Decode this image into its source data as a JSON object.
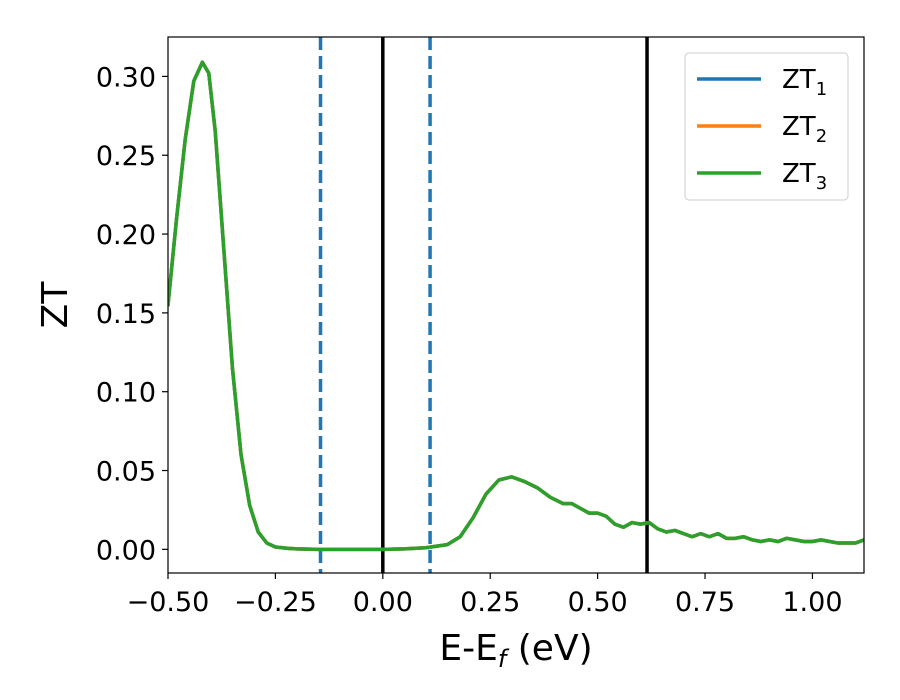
{
  "chart_data": {
    "type": "line",
    "xlabel": {
      "main": "E-E",
      "sub": "f",
      "unit": " (eV)"
    },
    "ylabel": "ZT",
    "xlim": [
      -0.5,
      1.12
    ],
    "ylim": [
      -0.015,
      0.325
    ],
    "xticks": [
      -0.5,
      -0.25,
      0.0,
      0.25,
      0.5,
      0.75,
      1.0
    ],
    "xtick_labels": [
      "−0.50",
      "−0.25",
      "0.00",
      "0.25",
      "0.50",
      "0.75",
      "1.00"
    ],
    "yticks": [
      0.0,
      0.05,
      0.1,
      0.15,
      0.2,
      0.25,
      0.3
    ],
    "ytick_labels": [
      "0.00",
      "0.05",
      "0.10",
      "0.15",
      "0.20",
      "0.25",
      "0.30"
    ],
    "grid": false,
    "legend_position": "top-right",
    "vlines": [
      {
        "x": -0.145,
        "style": "dashed",
        "color": "#1f77b4"
      },
      {
        "x": 0.11,
        "style": "dashed",
        "color": "#1f77b4"
      },
      {
        "x": 0.0,
        "style": "solid",
        "color": "#000000"
      },
      {
        "x": 0.615,
        "style": "solid",
        "color": "#000000"
      }
    ],
    "x": [
      -0.5,
      -0.48,
      -0.46,
      -0.44,
      -0.42,
      -0.405,
      -0.39,
      -0.37,
      -0.35,
      -0.33,
      -0.31,
      -0.29,
      -0.27,
      -0.25,
      -0.22,
      -0.2,
      -0.15,
      -0.1,
      -0.05,
      0.0,
      0.05,
      0.1,
      0.15,
      0.18,
      0.21,
      0.24,
      0.27,
      0.3,
      0.33,
      0.36,
      0.39,
      0.42,
      0.44,
      0.46,
      0.48,
      0.5,
      0.52,
      0.54,
      0.56,
      0.58,
      0.6,
      0.62,
      0.64,
      0.66,
      0.68,
      0.7,
      0.72,
      0.74,
      0.76,
      0.78,
      0.8,
      0.82,
      0.84,
      0.86,
      0.88,
      0.9,
      0.92,
      0.94,
      0.96,
      0.98,
      1.0,
      1.02,
      1.04,
      1.06,
      1.08,
      1.1,
      1.12
    ],
    "series": [
      {
        "name": "ZT_1",
        "label_main": "ZT",
        "label_sub": "1",
        "color": "#1f77b4",
        "values": [
          0.155,
          0.21,
          0.26,
          0.297,
          0.309,
          0.302,
          0.265,
          0.19,
          0.115,
          0.06,
          0.028,
          0.011,
          0.004,
          0.0015,
          0.0006,
          0.0003,
          0.0,
          0.0,
          0.0,
          0.0,
          0.0003,
          0.001,
          0.003,
          0.008,
          0.02,
          0.035,
          0.044,
          0.046,
          0.043,
          0.039,
          0.033,
          0.029,
          0.029,
          0.026,
          0.023,
          0.023,
          0.021,
          0.016,
          0.014,
          0.017,
          0.016,
          0.017,
          0.013,
          0.011,
          0.012,
          0.01,
          0.008,
          0.01,
          0.008,
          0.01,
          0.007,
          0.007,
          0.008,
          0.006,
          0.005,
          0.006,
          0.005,
          0.007,
          0.006,
          0.005,
          0.005,
          0.006,
          0.005,
          0.004,
          0.004,
          0.004,
          0.006
        ]
      },
      {
        "name": "ZT_2",
        "label_main": "ZT",
        "label_sub": "2",
        "color": "#ff7f0e",
        "values": [
          0.155,
          0.21,
          0.26,
          0.297,
          0.309,
          0.302,
          0.265,
          0.19,
          0.115,
          0.06,
          0.028,
          0.011,
          0.004,
          0.0015,
          0.0006,
          0.0003,
          0.0,
          0.0,
          0.0,
          0.0,
          0.0003,
          0.001,
          0.003,
          0.008,
          0.02,
          0.035,
          0.044,
          0.046,
          0.043,
          0.039,
          0.033,
          0.029,
          0.029,
          0.026,
          0.023,
          0.023,
          0.021,
          0.016,
          0.014,
          0.017,
          0.016,
          0.017,
          0.013,
          0.011,
          0.012,
          0.01,
          0.008,
          0.01,
          0.008,
          0.01,
          0.007,
          0.007,
          0.008,
          0.006,
          0.005,
          0.006,
          0.005,
          0.007,
          0.006,
          0.005,
          0.005,
          0.006,
          0.005,
          0.004,
          0.004,
          0.004,
          0.006
        ]
      },
      {
        "name": "ZT_3",
        "label_main": "ZT",
        "label_sub": "3",
        "color": "#2ca02c",
        "values": [
          0.155,
          0.21,
          0.26,
          0.297,
          0.309,
          0.302,
          0.265,
          0.19,
          0.115,
          0.06,
          0.028,
          0.011,
          0.004,
          0.0015,
          0.0006,
          0.0003,
          0.0,
          0.0,
          0.0,
          0.0,
          0.0003,
          0.001,
          0.003,
          0.008,
          0.02,
          0.035,
          0.044,
          0.046,
          0.043,
          0.039,
          0.033,
          0.029,
          0.029,
          0.026,
          0.023,
          0.023,
          0.021,
          0.016,
          0.014,
          0.017,
          0.016,
          0.017,
          0.013,
          0.011,
          0.012,
          0.01,
          0.008,
          0.01,
          0.008,
          0.01,
          0.007,
          0.007,
          0.008,
          0.006,
          0.005,
          0.006,
          0.005,
          0.007,
          0.006,
          0.005,
          0.005,
          0.006,
          0.005,
          0.004,
          0.004,
          0.004,
          0.006
        ]
      }
    ]
  }
}
